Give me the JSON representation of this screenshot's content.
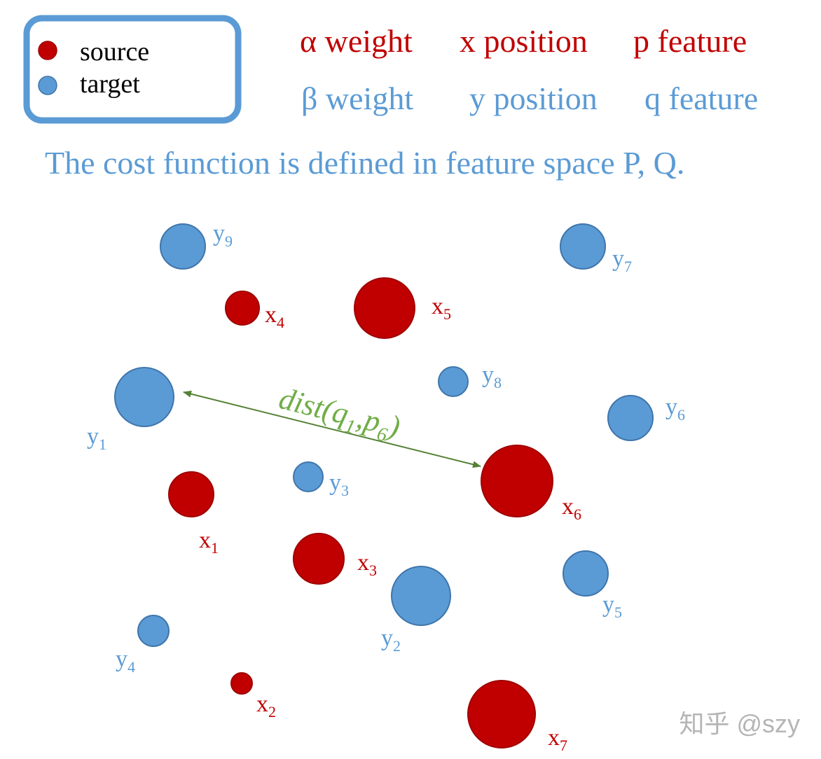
{
  "colors": {
    "source": "#c00000",
    "source_stroke": "#a00000",
    "target": "#5b9bd5",
    "target_stroke": "#3f75ab",
    "legend_border": "#5b9bd5",
    "distance": "#70ad47",
    "distance_line": "#548235",
    "watermark": "#b5b5b5"
  },
  "legend": {
    "source_label": "source",
    "target_label": "target"
  },
  "definitions": {
    "row1": {
      "alpha": "α weight",
      "x": "x position",
      "p": "p feature"
    },
    "row2": {
      "beta": "β weight",
      "y": "y position",
      "q": "q feature"
    }
  },
  "note": "The cost function is defined in feature space P, Q.",
  "distance": {
    "label_start": "dist(q",
    "sub1": "1",
    "label_mid": ",p",
    "sub2": "6",
    "label_end": ")"
  },
  "points": {
    "x1": {
      "letter": "x",
      "sub": "1",
      "kind": "source"
    },
    "x2": {
      "letter": "x",
      "sub": "2",
      "kind": "source"
    },
    "x3": {
      "letter": "x",
      "sub": "3",
      "kind": "source"
    },
    "x4": {
      "letter": "x",
      "sub": "4",
      "kind": "source"
    },
    "x5": {
      "letter": "x",
      "sub": "5",
      "kind": "source"
    },
    "x6": {
      "letter": "x",
      "sub": "6",
      "kind": "source"
    },
    "x7": {
      "letter": "x",
      "sub": "7",
      "kind": "source"
    },
    "y1": {
      "letter": "y",
      "sub": "1",
      "kind": "target"
    },
    "y2": {
      "letter": "y",
      "sub": "2",
      "kind": "target"
    },
    "y3": {
      "letter": "y",
      "sub": "3",
      "kind": "target"
    },
    "y4": {
      "letter": "y",
      "sub": "4",
      "kind": "target"
    },
    "y5": {
      "letter": "y",
      "sub": "5",
      "kind": "target"
    },
    "y6": {
      "letter": "y",
      "sub": "6",
      "kind": "target"
    },
    "y7": {
      "letter": "y",
      "sub": "7",
      "kind": "target"
    },
    "y8": {
      "letter": "y",
      "sub": "8",
      "kind": "target"
    },
    "y9": {
      "letter": "y",
      "sub": "9",
      "kind": "target"
    }
  },
  "watermark": "知乎 @szy"
}
